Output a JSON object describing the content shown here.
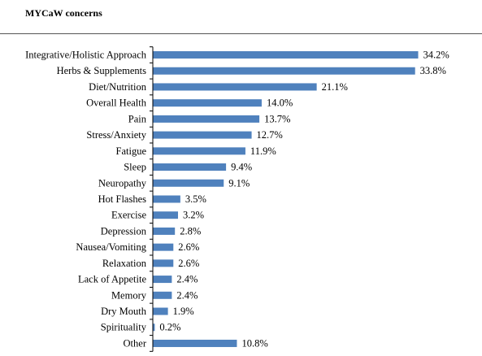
{
  "chart_data": {
    "type": "bar",
    "orientation": "horizontal",
    "title": "MYCaW concerns",
    "categories": [
      "Integrative/Holistic Approach",
      "Herbs & Supplements",
      "Diet/Nutrition",
      "Overall Health",
      "Pain",
      "Stress/Anxiety",
      "Fatigue",
      "Sleep",
      "Neuropathy",
      "Hot Flashes",
      "Exercise",
      "Depression",
      "Nausea/Vomiting",
      "Relaxation",
      "Lack of Appetite",
      "Memory",
      "Dry Mouth",
      "Spirituality",
      "Other"
    ],
    "values": [
      34.2,
      33.8,
      21.1,
      14.0,
      13.7,
      12.7,
      11.9,
      9.4,
      9.1,
      3.5,
      3.2,
      2.8,
      2.6,
      2.6,
      2.4,
      2.4,
      1.9,
      0.2,
      10.8
    ],
    "value_labels": [
      "34.2%",
      "33.8%",
      "21.1%",
      "14.0%",
      "13.7%",
      "12.7%",
      "11.9%",
      "9.4%",
      "9.1%",
      "3.5%",
      "3.2%",
      "2.8%",
      "2.6%",
      "2.6%",
      "2.4%",
      "2.4%",
      "1.9%",
      "0.2%",
      "10.8%"
    ],
    "xlabel": "",
    "ylabel": "",
    "xlim": [
      0,
      34.2
    ],
    "grid": false,
    "legend": "none",
    "bar_color": "#4f81bd"
  }
}
